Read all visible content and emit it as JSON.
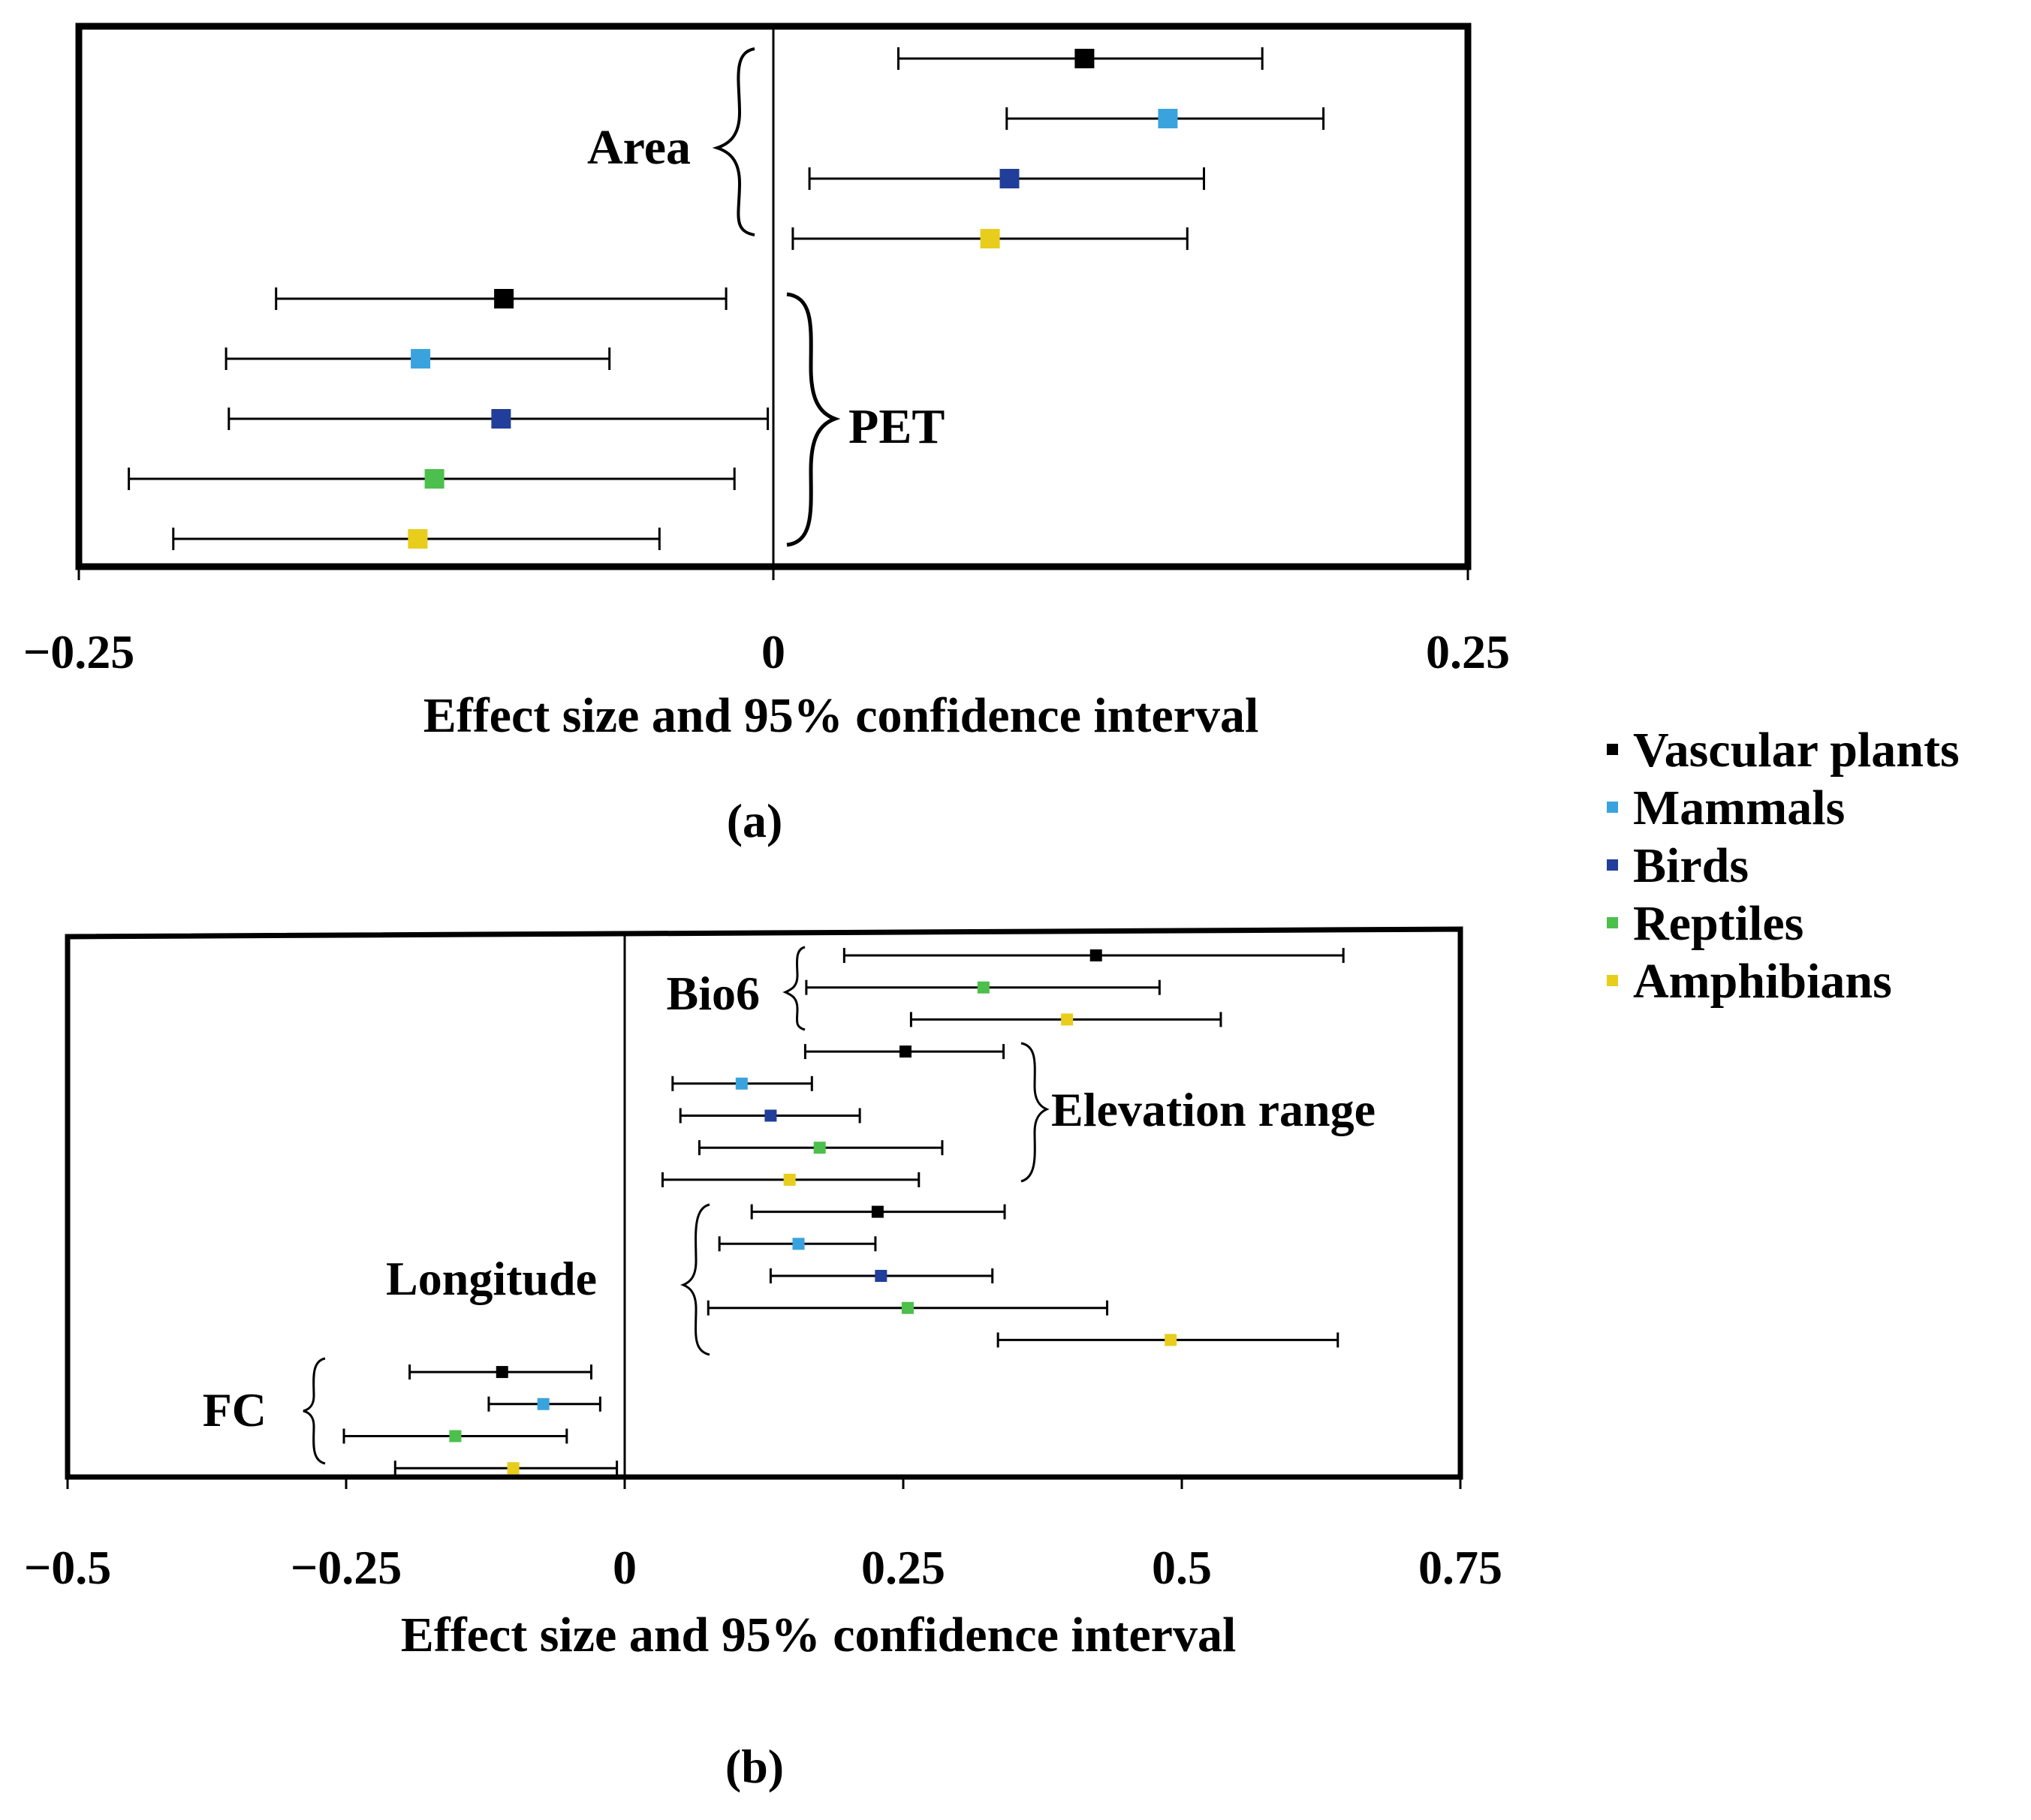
{
  "chart_data": [
    {
      "type": "forest",
      "panel_label": "(a)",
      "xlabel": "Effect size and 95% confidence interval",
      "xlim": [
        -0.25,
        0.25
      ],
      "ticks": [
        {
          "value": -0.25,
          "label": "−0.25"
        },
        {
          "value": 0,
          "label": "0"
        },
        {
          "value": 0.25,
          "label": "0.25"
        }
      ],
      "groups": [
        {
          "label": "Area",
          "rows": [
            {
              "taxon": "Vascular plants",
              "est": 0.112,
              "lo": 0.045,
              "hi": 0.176
            },
            {
              "taxon": "Mammals",
              "est": 0.142,
              "lo": 0.084,
              "hi": 0.198
            },
            {
              "taxon": "Birds",
              "est": 0.085,
              "lo": 0.013,
              "hi": 0.155
            },
            {
              "taxon": "Amphibians",
              "est": 0.078,
              "lo": 0.007,
              "hi": 0.149
            }
          ]
        },
        {
          "label": "PET",
          "rows": [
            {
              "taxon": "Vascular plants",
              "est": -0.097,
              "lo": -0.179,
              "hi": -0.017
            },
            {
              "taxon": "Mammals",
              "est": -0.127,
              "lo": -0.197,
              "hi": -0.059
            },
            {
              "taxon": "Birds",
              "est": -0.098,
              "lo": -0.196,
              "hi": -0.002
            },
            {
              "taxon": "Reptiles",
              "est": -0.122,
              "lo": -0.232,
              "hi": -0.014
            },
            {
              "taxon": "Amphibians",
              "est": -0.128,
              "lo": -0.216,
              "hi": -0.041
            }
          ]
        }
      ]
    },
    {
      "type": "forest",
      "panel_label": "(b)",
      "xlabel": "Effect size and 95% confidence interval",
      "xlim": [
        -0.5,
        0.75
      ],
      "ticks": [
        {
          "value": -0.5,
          "label": "−0.5"
        },
        {
          "value": -0.25,
          "label": "−0.25"
        },
        {
          "value": 0,
          "label": "0"
        },
        {
          "value": 0.25,
          "label": "0.25"
        },
        {
          "value": 0.5,
          "label": "0.5"
        },
        {
          "value": 0.75,
          "label": "0.75"
        }
      ],
      "groups": [
        {
          "label": "Bio6",
          "rows": [
            {
              "taxon": "Vascular plants",
              "est": 0.423,
              "lo": 0.197,
              "hi": 0.645
            },
            {
              "taxon": "Reptiles",
              "est": 0.322,
              "lo": 0.163,
              "hi": 0.48
            },
            {
              "taxon": "Amphibians",
              "est": 0.397,
              "lo": 0.257,
              "hi": 0.535
            }
          ]
        },
        {
          "label": "Elevation range",
          "rows": [
            {
              "taxon": "Vascular plants",
              "est": 0.252,
              "lo": 0.162,
              "hi": 0.34
            },
            {
              "taxon": "Mammals",
              "est": 0.105,
              "lo": 0.043,
              "hi": 0.168
            },
            {
              "taxon": "Birds",
              "est": 0.131,
              "lo": 0.05,
              "hi": 0.211
            },
            {
              "taxon": "Reptiles",
              "est": 0.175,
              "lo": 0.067,
              "hi": 0.285
            },
            {
              "taxon": "Amphibians",
              "est": 0.148,
              "lo": 0.034,
              "hi": 0.264
            }
          ]
        },
        {
          "label": "Longitude",
          "rows": [
            {
              "taxon": "Vascular plants",
              "est": 0.227,
              "lo": 0.114,
              "hi": 0.341
            },
            {
              "taxon": "Mammals",
              "est": 0.156,
              "lo": 0.085,
              "hi": 0.225
            },
            {
              "taxon": "Birds",
              "est": 0.23,
              "lo": 0.131,
              "hi": 0.33
            },
            {
              "taxon": "Reptiles",
              "est": 0.254,
              "lo": 0.075,
              "hi": 0.433
            },
            {
              "taxon": "Amphibians",
              "est": 0.49,
              "lo": 0.335,
              "hi": 0.64
            }
          ]
        },
        {
          "label": "FC",
          "rows": [
            {
              "taxon": "Vascular plants",
              "est": -0.11,
              "lo": -0.193,
              "hi": -0.03
            },
            {
              "taxon": "Mammals",
              "est": -0.073,
              "lo": -0.122,
              "hi": -0.022
            },
            {
              "taxon": "Reptiles",
              "est": -0.152,
              "lo": -0.252,
              "hi": -0.052
            },
            {
              "taxon": "Amphibians",
              "est": -0.1,
              "lo": -0.206,
              "hi": -0.007
            }
          ]
        }
      ]
    }
  ],
  "legend": {
    "items": [
      {
        "taxon": "Vascular plants",
        "label": "Vascular plants",
        "color": "#000000"
      },
      {
        "taxon": "Mammals",
        "label": "Mammals",
        "color": "#3aa3de"
      },
      {
        "taxon": "Birds",
        "label": "Birds",
        "color": "#213e9a"
      },
      {
        "taxon": "Reptiles",
        "label": "Reptiles",
        "color": "#4cbf4c"
      },
      {
        "taxon": "Amphibians",
        "label": "Amphibians",
        "color": "#e8cd1c"
      }
    ]
  }
}
